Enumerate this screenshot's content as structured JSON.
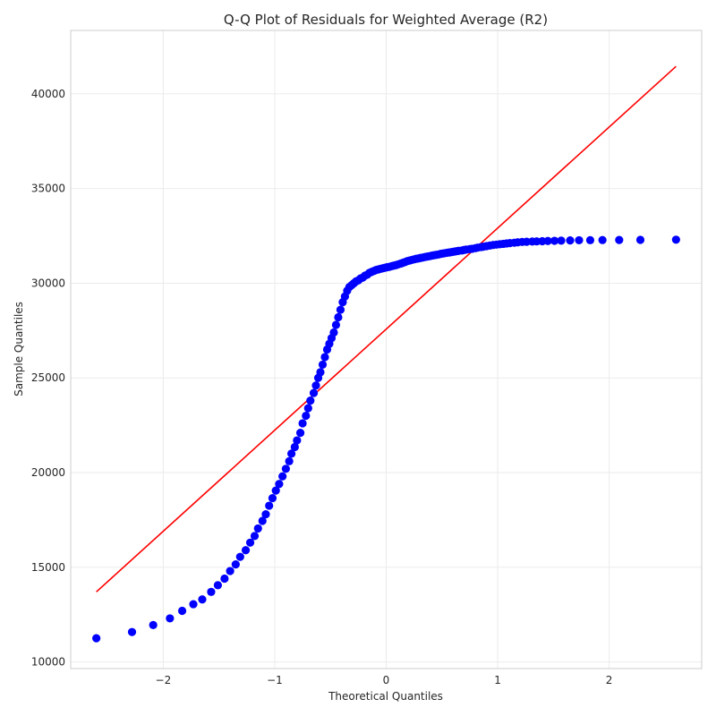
{
  "chart_data": {
    "type": "scatter",
    "title": "Q-Q Plot of Residuals for Weighted Average (R2)",
    "xlabel": "Theoretical Quantiles",
    "ylabel": "Sample Quantiles",
    "xlim": [
      -2.83,
      2.83
    ],
    "ylim": [
      9650,
      43350
    ],
    "grid": true,
    "x_ticks": [
      -2,
      -1,
      0,
      1,
      2
    ],
    "x_tick_labels": [
      "−2",
      "−1",
      "0",
      "1",
      "2"
    ],
    "y_ticks": [
      10000,
      15000,
      20000,
      25000,
      30000,
      35000,
      40000
    ],
    "y_tick_labels": [
      "10000",
      "15000",
      "20000",
      "25000",
      "30000",
      "35000",
      "40000"
    ],
    "marker_color": "#0000ff",
    "line_color": "#ff0000",
    "reference_line": {
      "x": [
        -2.6,
        2.6
      ],
      "y": [
        13700,
        41450
      ]
    },
    "series": [
      {
        "x": [
          -2.6,
          -2.28,
          -2.09,
          -1.94,
          -1.83,
          -1.73,
          -1.65,
          -1.57,
          -1.51,
          -1.45,
          -1.4,
          -1.35,
          -1.31,
          -1.26,
          -1.22,
          -1.18,
          -1.15,
          -1.11,
          -1.08,
          -1.05,
          -1.02,
          -0.99,
          -0.96,
          -0.93,
          -0.9,
          -0.87,
          -0.85,
          -0.82,
          -0.8,
          -0.77,
          -0.75,
          -0.72,
          -0.7,
          -0.68,
          -0.65,
          -0.63,
          -0.61,
          -0.59,
          -0.57,
          -0.55,
          -0.53,
          -0.51,
          -0.49,
          -0.47,
          -0.45,
          -0.43,
          -0.41,
          -0.39,
          -0.37,
          -0.35,
          -0.33,
          -0.31,
          -0.29,
          -0.27,
          -0.25,
          -0.23,
          -0.21,
          -0.19,
          -0.17,
          -0.15,
          -0.13,
          -0.11,
          -0.09,
          -0.07,
          -0.05,
          -0.03,
          -0.01,
          0.01,
          0.03,
          0.05,
          0.07,
          0.09,
          0.11,
          0.13,
          0.15,
          0.17,
          0.19,
          0.21,
          0.23,
          0.25,
          0.27,
          0.29,
          0.31,
          0.33,
          0.35,
          0.37,
          0.39,
          0.41,
          0.43,
          0.45,
          0.47,
          0.49,
          0.51,
          0.53,
          0.55,
          0.57,
          0.59,
          0.61,
          0.63,
          0.65,
          0.68,
          0.7,
          0.72,
          0.75,
          0.77,
          0.8,
          0.82,
          0.85,
          0.87,
          0.9,
          0.93,
          0.96,
          0.99,
          1.02,
          1.05,
          1.08,
          1.11,
          1.15,
          1.18,
          1.22,
          1.26,
          1.31,
          1.35,
          1.4,
          1.45,
          1.51,
          1.57,
          1.65,
          1.73,
          1.83,
          1.94,
          2.09,
          2.28,
          2.6
        ],
        "y": [
          11250,
          11580,
          11950,
          12300,
          12700,
          13050,
          13300,
          13700,
          14050,
          14400,
          14800,
          15150,
          15550,
          15900,
          16300,
          16650,
          17050,
          17450,
          17800,
          18250,
          18650,
          19050,
          19400,
          19800,
          20200,
          20600,
          21000,
          21350,
          21700,
          22100,
          22600,
          23000,
          23400,
          23800,
          24200,
          24600,
          25000,
          25300,
          25700,
          26100,
          26500,
          26800,
          27100,
          27400,
          27800,
          28200,
          28600,
          29000,
          29300,
          29600,
          29800,
          29900,
          30000,
          30100,
          30150,
          30250,
          30300,
          30400,
          30450,
          30550,
          30600,
          30650,
          30700,
          30730,
          30760,
          30790,
          30820,
          30850,
          30870,
          30900,
          30930,
          30960,
          31000,
          31040,
          31080,
          31120,
          31170,
          31200,
          31230,
          31260,
          31290,
          31310,
          31340,
          31360,
          31390,
          31410,
          31430,
          31460,
          31480,
          31500,
          31520,
          31550,
          31570,
          31590,
          31610,
          31630,
          31650,
          31670,
          31690,
          31710,
          31730,
          31760,
          31780,
          31800,
          31820,
          31850,
          31880,
          31910,
          31930,
          31960,
          31990,
          32020,
          32040,
          32060,
          32080,
          32100,
          32120,
          32140,
          32160,
          32180,
          32190,
          32200,
          32210,
          32220,
          32230,
          32240,
          32250,
          32260,
          32270,
          32275,
          32280,
          32285,
          32290,
          32300
        ]
      }
    ]
  }
}
